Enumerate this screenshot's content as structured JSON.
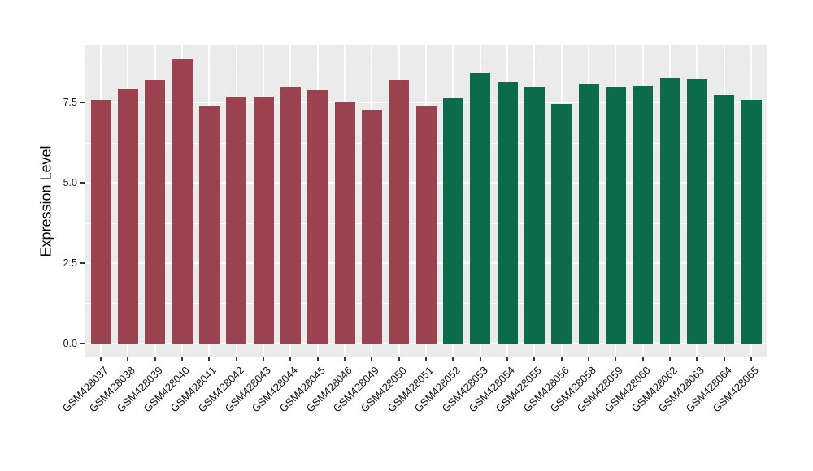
{
  "chart_data": {
    "type": "bar",
    "title": "",
    "xlabel": "",
    "ylabel": "Expression Level",
    "ylim": [
      0,
      9.28
    ],
    "yticks_major": [
      0.0,
      2.5,
      5.0,
      7.5
    ],
    "ytick_labels": [
      "0.0",
      "2.5",
      "5.0",
      "7.5"
    ],
    "yticks_minor": [
      1.25,
      3.75,
      6.25,
      8.75
    ],
    "grid": "major-and-minor-horizontal, vertical-at-category-centers",
    "legend_position": "none",
    "categories": [
      "GSM428037",
      "GSM428038",
      "GSM428039",
      "GSM428040",
      "GSM428041",
      "GSM428042",
      "GSM428043",
      "GSM428044",
      "GSM428045",
      "GSM428046",
      "GSM428049",
      "GSM428050",
      "GSM428051",
      "GSM428052",
      "GSM428053",
      "GSM428054",
      "GSM428055",
      "GSM428056",
      "GSM428058",
      "GSM428059",
      "GSM428060",
      "GSM428062",
      "GSM428063",
      "GSM428064",
      "GSM428065"
    ],
    "values": [
      7.6,
      7.95,
      8.2,
      8.85,
      7.38,
      7.7,
      7.7,
      8.0,
      7.9,
      7.5,
      7.25,
      8.2,
      7.42,
      7.65,
      8.42,
      8.15,
      8.0,
      7.45,
      8.06,
      7.98,
      8.03,
      8.28,
      8.24,
      7.75,
      7.58
    ],
    "bar_group": [
      0,
      0,
      0,
      0,
      0,
      0,
      0,
      0,
      0,
      0,
      0,
      0,
      0,
      1,
      1,
      1,
      1,
      1,
      1,
      1,
      1,
      1,
      1,
      1,
      1
    ],
    "group_colors": [
      "#9B4251",
      "#0B6B4A"
    ]
  },
  "style": {
    "panel_background": "#EBEBEB",
    "gridline_color": "#FFFFFF",
    "axis_text_color": "#1a1a1a",
    "tick_mark_color": "#333333",
    "figure_background": "#FFFFFF"
  }
}
